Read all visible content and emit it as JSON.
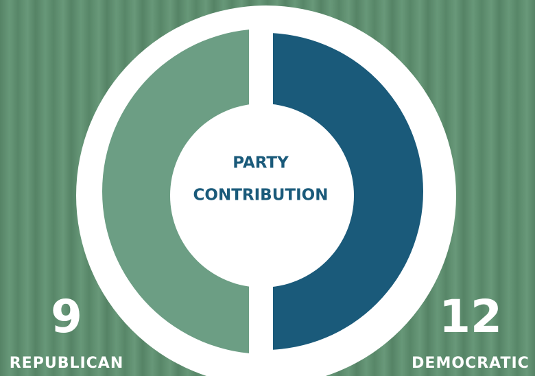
{
  "center_label": {
    "line1": "PARTY",
    "line2": "CONTRIBUTION"
  },
  "parties": [
    {
      "count": "9",
      "label": "REPUBLICAN"
    },
    {
      "count": "12",
      "label": "DEMOCRATIC"
    }
  ]
}
